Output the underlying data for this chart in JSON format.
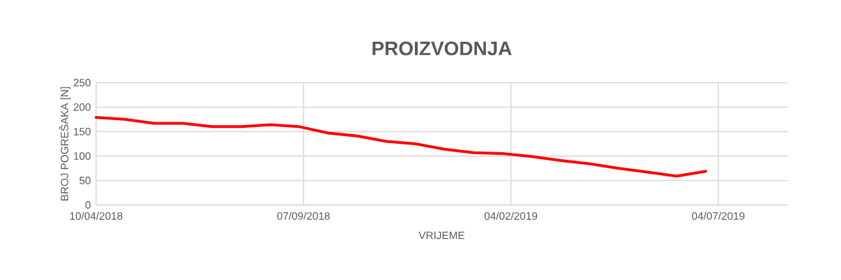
{
  "chart_data": {
    "type": "line",
    "title": "PROIZVODNJA",
    "xlabel": "VRIJEME",
    "ylabel": "BROJ POGREŠAKA [N]",
    "x": [
      "2018-04-10",
      "2018-05-01",
      "2018-05-22",
      "2018-06-12",
      "2018-07-03",
      "2018-07-24",
      "2018-08-14",
      "2018-09-04",
      "2018-09-25",
      "2018-10-16",
      "2018-11-06",
      "2018-11-27",
      "2018-12-18",
      "2019-01-08",
      "2019-01-29",
      "2019-02-19",
      "2019-03-12",
      "2019-04-02",
      "2019-04-23",
      "2019-05-14",
      "2019-06-04",
      "2019-06-25"
    ],
    "series": [
      {
        "color": "#ff0000",
        "values": [
          179,
          175,
          167,
          167,
          160,
          160,
          164,
          160,
          147,
          141,
          130,
          125,
          114,
          107,
          105,
          99,
          91,
          84,
          75,
          67,
          59,
          69
        ]
      }
    ],
    "xlim": [
      "2018-04-10",
      "2019-08-23"
    ],
    "xticks": [
      {
        "value": "2018-04-10",
        "label": "10/04/2018"
      },
      {
        "value": "2018-09-07",
        "label": "07/09/2018"
      },
      {
        "value": "2019-02-04",
        "label": "04/02/2019"
      },
      {
        "value": "2019-07-04",
        "label": "04/07/2019"
      }
    ],
    "ylim": [
      0,
      250
    ],
    "yticks": [
      0,
      50,
      100,
      150,
      200,
      250
    ],
    "grid": true
  }
}
